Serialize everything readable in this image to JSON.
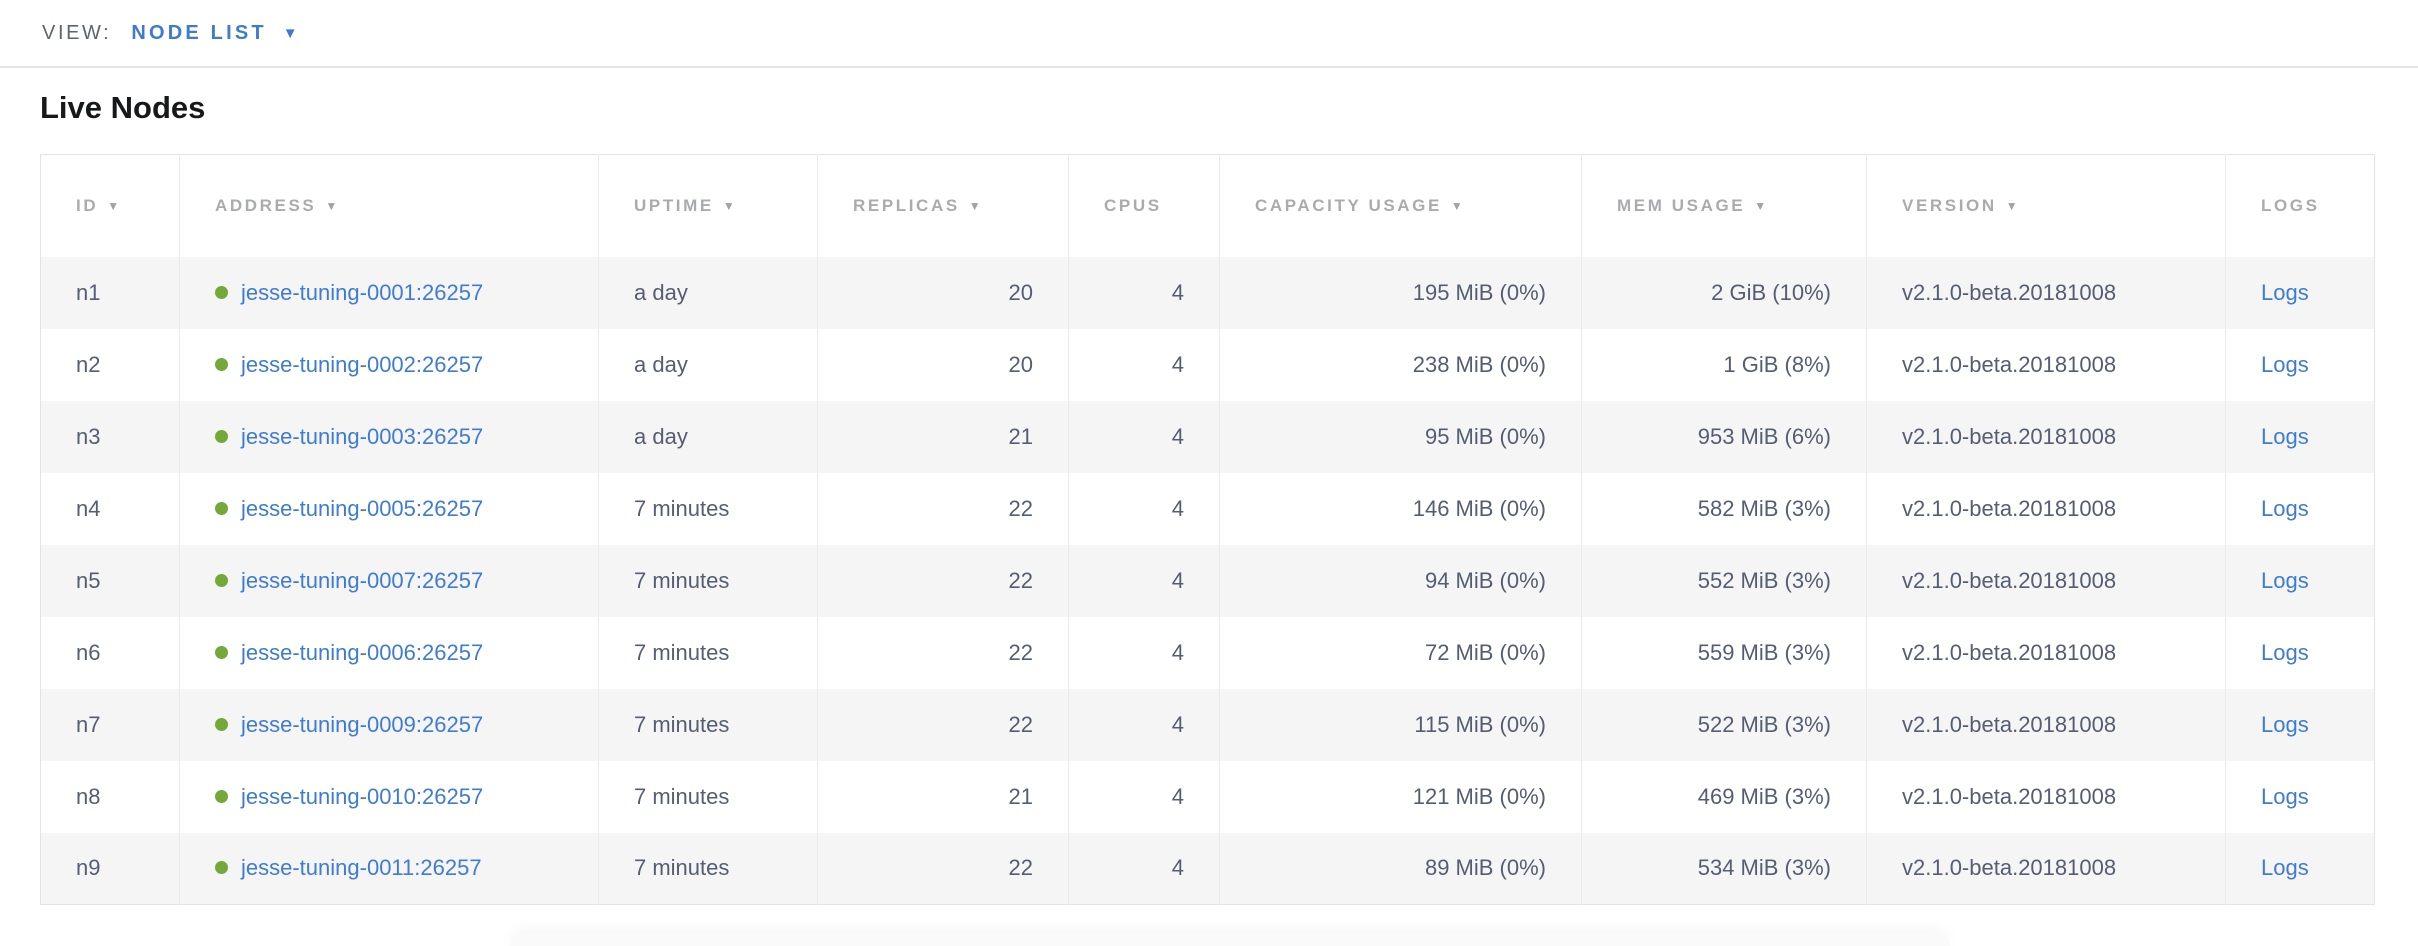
{
  "view_bar": {
    "label": "VIEW:",
    "selected": "NODE LIST"
  },
  "page": {
    "title": "Live Nodes"
  },
  "colors": {
    "accent_blue": "#3e7bd3",
    "live_dot_green": "#73a938",
    "header_gray": "#a9abaf",
    "cell_text": "#545e71",
    "row_stripe": "#f5f5f6"
  },
  "table": {
    "columns": [
      {
        "key": "id",
        "label": "ID",
        "sortable": true,
        "align": "left"
      },
      {
        "key": "address",
        "label": "ADDRESS",
        "sortable": true,
        "align": "left"
      },
      {
        "key": "uptime",
        "label": "UPTIME",
        "sortable": true,
        "align": "left"
      },
      {
        "key": "replicas",
        "label": "REPLICAS",
        "sortable": true,
        "align": "right"
      },
      {
        "key": "cpus",
        "label": "CPUS",
        "sortable": false,
        "align": "right"
      },
      {
        "key": "capacity",
        "label": "CAPACITY USAGE",
        "sortable": true,
        "align": "right"
      },
      {
        "key": "mem",
        "label": "MEM USAGE",
        "sortable": true,
        "align": "right"
      },
      {
        "key": "version",
        "label": "VERSION",
        "sortable": true,
        "align": "left"
      },
      {
        "key": "logs",
        "label": "LOGS",
        "sortable": false,
        "align": "left"
      }
    ],
    "logs_link_label": "Logs",
    "rows": [
      {
        "id": "n1",
        "status": "live",
        "address": "jesse-tuning-0001:26257",
        "uptime": "a day",
        "replicas": "20",
        "cpus": "4",
        "capacity": "195 MiB (0%)",
        "mem": "2 GiB (10%)",
        "version": "v2.1.0-beta.20181008"
      },
      {
        "id": "n2",
        "status": "live",
        "address": "jesse-tuning-0002:26257",
        "uptime": "a day",
        "replicas": "20",
        "cpus": "4",
        "capacity": "238 MiB (0%)",
        "mem": "1 GiB (8%)",
        "version": "v2.1.0-beta.20181008"
      },
      {
        "id": "n3",
        "status": "live",
        "address": "jesse-tuning-0003:26257",
        "uptime": "a day",
        "replicas": "21",
        "cpus": "4",
        "capacity": "95 MiB (0%)",
        "mem": "953 MiB (6%)",
        "version": "v2.1.0-beta.20181008"
      },
      {
        "id": "n4",
        "status": "live",
        "address": "jesse-tuning-0005:26257",
        "uptime": "7 minutes",
        "replicas": "22",
        "cpus": "4",
        "capacity": "146 MiB (0%)",
        "mem": "582 MiB (3%)",
        "version": "v2.1.0-beta.20181008"
      },
      {
        "id": "n5",
        "status": "live",
        "address": "jesse-tuning-0007:26257",
        "uptime": "7 minutes",
        "replicas": "22",
        "cpus": "4",
        "capacity": "94 MiB (0%)",
        "mem": "552 MiB (3%)",
        "version": "v2.1.0-beta.20181008"
      },
      {
        "id": "n6",
        "status": "live",
        "address": "jesse-tuning-0006:26257",
        "uptime": "7 minutes",
        "replicas": "22",
        "cpus": "4",
        "capacity": "72 MiB (0%)",
        "mem": "559 MiB (3%)",
        "version": "v2.1.0-beta.20181008"
      },
      {
        "id": "n7",
        "status": "live",
        "address": "jesse-tuning-0009:26257",
        "uptime": "7 minutes",
        "replicas": "22",
        "cpus": "4",
        "capacity": "115 MiB (0%)",
        "mem": "522 MiB (3%)",
        "version": "v2.1.0-beta.20181008"
      },
      {
        "id": "n8",
        "status": "live",
        "address": "jesse-tuning-0010:26257",
        "uptime": "7 minutes",
        "replicas": "21",
        "cpus": "4",
        "capacity": "121 MiB (0%)",
        "mem": "469 MiB (3%)",
        "version": "v2.1.0-beta.20181008"
      },
      {
        "id": "n9",
        "status": "live",
        "address": "jesse-tuning-0011:26257",
        "uptime": "7 minutes",
        "replicas": "22",
        "cpus": "4",
        "capacity": "89 MiB (0%)",
        "mem": "534 MiB (3%)",
        "version": "v2.1.0-beta.20181008"
      }
    ]
  }
}
